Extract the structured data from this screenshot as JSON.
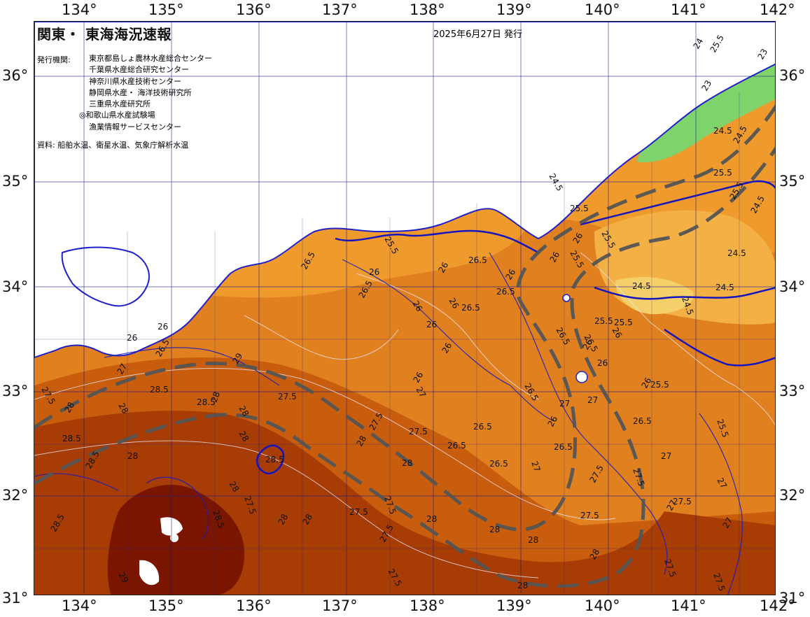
{
  "map": {
    "title": "関東・ 東海海況速報",
    "issue_date": "2025年6月27日 発行",
    "publisher_label": "発行機関:",
    "publishers": [
      "東京都島しょ農林水産総合センター",
      "千葉県水産総合研究センター",
      "神奈川県水産技術センター",
      "静岡県水産・ 海洋技術研究所",
      "三重県水産研究所",
      "◎和歌山県水産試験場",
      "漁業情報サービスセンター"
    ],
    "source": "資料: 船舶水温、衛星水温、気象庁解析水温",
    "longitude_labels": [
      "134°",
      "135°",
      "136°",
      "137°",
      "138°",
      "139°",
      "140°",
      "141°",
      "142°"
    ],
    "latitude_labels": [
      "36°",
      "35°",
      "34°",
      "33°",
      "32°",
      "31°"
    ],
    "contour_labels": [
      "24.5",
      "25.5",
      "26",
      "26.5",
      "27",
      "27.5",
      "28",
      "28.5",
      "29",
      "23",
      "24"
    ],
    "colors": {
      "land": "#ffffff",
      "sea_cool": "#7fd36b",
      "sea_23": "#f5d06a",
      "sea_24": "#f3b145",
      "sea_25": "#ee9a2d",
      "sea_26": "#e0801f",
      "sea_27": "#c85d0e",
      "sea_28": "#a83c05",
      "sea_29": "#7a1600",
      "contour_major": "#1515c0",
      "contour_minor": "#e8e8ff",
      "kuroshio_path": "#555555",
      "grid": "#1a1a8a"
    }
  }
}
